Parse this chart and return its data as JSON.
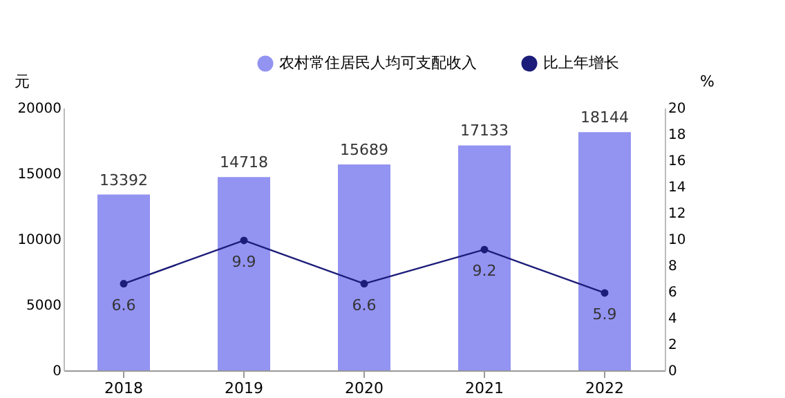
{
  "chart_data": {
    "type": "bar",
    "ylabel": "元",
    "y2label": "%",
    "categories": [
      "2018",
      "2019",
      "2020",
      "2021",
      "2022"
    ],
    "series": [
      {
        "name": "农村常住居民人均可支配收入",
        "color": "#9393f2",
        "values": [
          13392,
          14718,
          15689,
          17133,
          18144
        ]
      },
      {
        "name": "比上年增长",
        "type": "line",
        "axis": "y2",
        "color": "#1c1c7a",
        "values": [
          6.6,
          9.9,
          6.6,
          9.2,
          5.9
        ]
      }
    ],
    "ylim": [
      0,
      20000
    ],
    "yticks": [
      0,
      5000,
      10000,
      15000,
      20000
    ],
    "y2lim": [
      0,
      20
    ],
    "y2ticks": [
      0,
      2,
      4,
      6,
      8,
      10,
      12,
      14,
      16,
      18,
      20
    ],
    "data_labels": true,
    "legend": "top right",
    "marker": "circle",
    "line_style": "solid",
    "grid": false
  }
}
